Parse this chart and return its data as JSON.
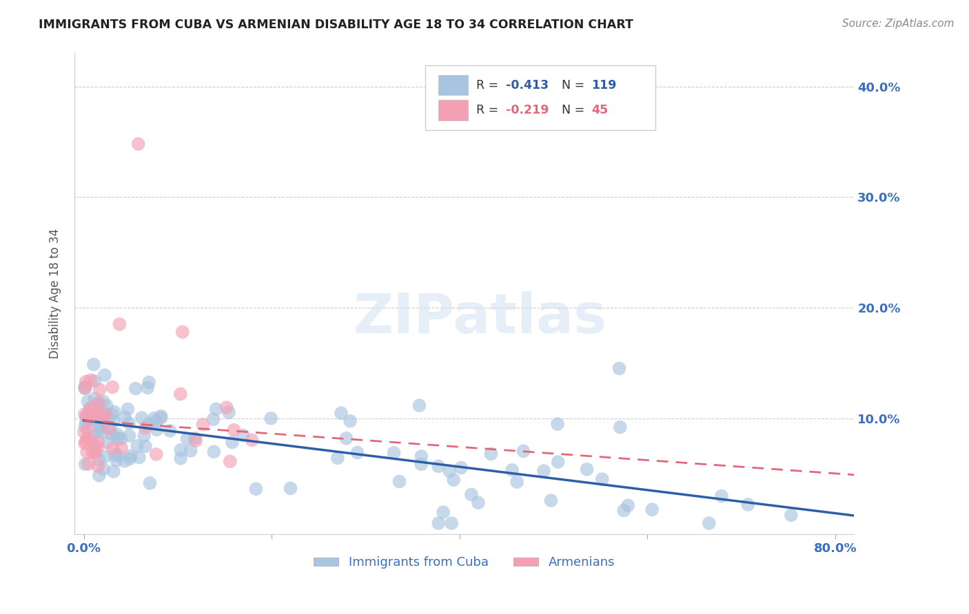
{
  "title": "IMMIGRANTS FROM CUBA VS ARMENIAN DISABILITY AGE 18 TO 34 CORRELATION CHART",
  "source": "Source: ZipAtlas.com",
  "ylabel": "Disability Age 18 to 34",
  "watermark": "ZIPatlas",
  "xlim": [
    -0.01,
    0.82
  ],
  "ylim": [
    -0.005,
    0.43
  ],
  "xtick_positions": [
    0.0,
    0.2,
    0.4,
    0.6,
    0.8
  ],
  "xtick_labels": [
    "0.0%",
    "",
    "",
    "",
    "80.0%"
  ],
  "ytick_positions": [
    0.1,
    0.2,
    0.3,
    0.4
  ],
  "ytick_labels": [
    "10.0%",
    "20.0%",
    "30.0%",
    "40.0%"
  ],
  "cuba_R": -0.413,
  "cuba_N": 119,
  "armenian_R": -0.219,
  "armenian_N": 45,
  "cuba_color": "#a8c4e0",
  "armenian_color": "#f4a0b4",
  "cuba_line_color": "#2c5fa8",
  "armenian_line_color": "#e06878",
  "text_color": "#3a6fbf",
  "background_color": "#ffffff",
  "grid_color": "#cccccc",
  "title_color": "#222222",
  "source_color": "#888888",
  "cuba_line_intercept": 0.098,
  "cuba_line_slope": -0.105,
  "arm_line_intercept": 0.098,
  "arm_line_slope": -0.06
}
